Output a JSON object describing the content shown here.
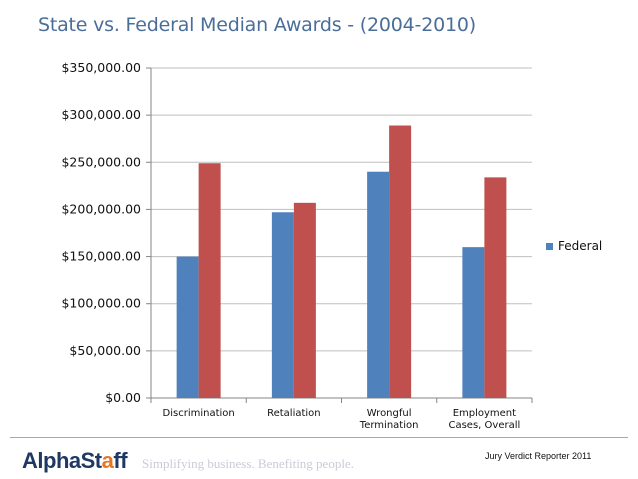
{
  "page": {
    "title": "State vs. Federal Median Awards - (2004-2010)"
  },
  "chart_data": {
    "type": "bar",
    "title": "State vs. Federal Median Awards - (2004-2010)",
    "categories": [
      [
        "Discrimination"
      ],
      [
        "Retaliation"
      ],
      [
        "Wrongful",
        "Termination"
      ],
      [
        "Employment",
        "Cases, Overall"
      ]
    ],
    "series": [
      {
        "name": "Federal",
        "color": "#4f81bd",
        "values": [
          150000,
          197000,
          240000,
          160000
        ]
      },
      {
        "color": "#c0504d",
        "values": [
          249000,
          207000,
          289000,
          234000
        ]
      }
    ],
    "ylim": [
      0,
      350000
    ],
    "yticks": [
      0,
      50000,
      100000,
      150000,
      200000,
      250000,
      300000,
      350000
    ],
    "ytick_labels": [
      "$0.00",
      "$50,000.00",
      "$100,000.00",
      "$150,000.00",
      "$200,000.00",
      "$250,000.00",
      "$300,000.00",
      "$350,000.00"
    ],
    "grid": true,
    "legend": {
      "position": "right",
      "entries": [
        "Federal"
      ]
    }
  },
  "footer": {
    "logo_prefix": "AlphaSt",
    "logo_accent": "a",
    "logo_suffix": "ff",
    "tagline": "Simplifying business. Benefiting people.",
    "source": "Jury Verdict Reporter 2011"
  }
}
